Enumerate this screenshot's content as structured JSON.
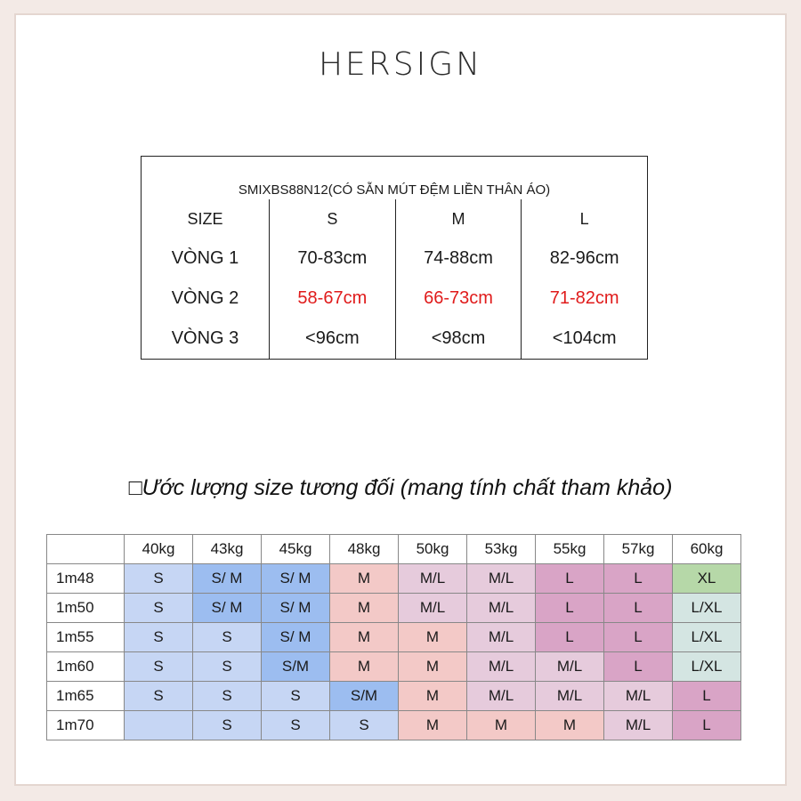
{
  "brand": "HERSIGN",
  "size_table": {
    "caption": "SMIXBS88N12(CÓ SẴN MÚT ĐỆM LIỀN THÂN ÁO)",
    "header": [
      "SIZE",
      "S",
      "M",
      "L"
    ],
    "rows": [
      {
        "label": "VÒNG 1",
        "values": [
          "70-83cm",
          "74-88cm",
          "82-96cm"
        ],
        "color": "#1a1a1a"
      },
      {
        "label": "VÒNG 2",
        "values": [
          "58-67cm",
          "66-73cm",
          "71-82cm"
        ],
        "color": "#e01b1b"
      },
      {
        "label": "VÒNG 3",
        "values": [
          "<96cm",
          "<98cm",
          "<104cm"
        ],
        "color": "#1a1a1a"
      }
    ]
  },
  "estimate": {
    "title": "Ước lượng size tương đối (mang tính chất tham khảo)",
    "weights": [
      "40kg",
      "43kg",
      "45kg",
      "48kg",
      "50kg",
      "53kg",
      "55kg",
      "57kg",
      "60kg"
    ],
    "heights": [
      "1m48",
      "1m50",
      "1m55",
      "1m60",
      "1m65",
      "1m70"
    ],
    "rows": [
      [
        "S",
        "S/ M",
        "S/ M",
        "M",
        "M/L",
        "M/L",
        "L",
        "L",
        "XL"
      ],
      [
        "S",
        "S/ M",
        "S/ M",
        "M",
        "M/L",
        "M/L",
        "L",
        "L",
        "L/XL"
      ],
      [
        "S",
        "S",
        "S/ M",
        "M",
        "M",
        "M/L",
        "L",
        "L",
        "L/XL"
      ],
      [
        "S",
        "S",
        "S/M",
        "M",
        "M",
        "M/L",
        "M/L",
        "L",
        "L/XL"
      ],
      [
        "S",
        "S",
        "S",
        "S/M",
        "M",
        "M/L",
        "M/L",
        "M/L",
        "L"
      ],
      [
        "",
        "S",
        "S",
        "S",
        "M",
        "M",
        "M",
        "M/L",
        "L"
      ]
    ],
    "colors": {
      "blue": "#c6d6f4",
      "blue_strong": "#9cbdf0",
      "pink": "#f3c9c7",
      "mauve": "#e6cbdc",
      "purple": "#d9a4c6",
      "green": "#b6d8a8",
      "teal": "#d4e5e2"
    }
  }
}
